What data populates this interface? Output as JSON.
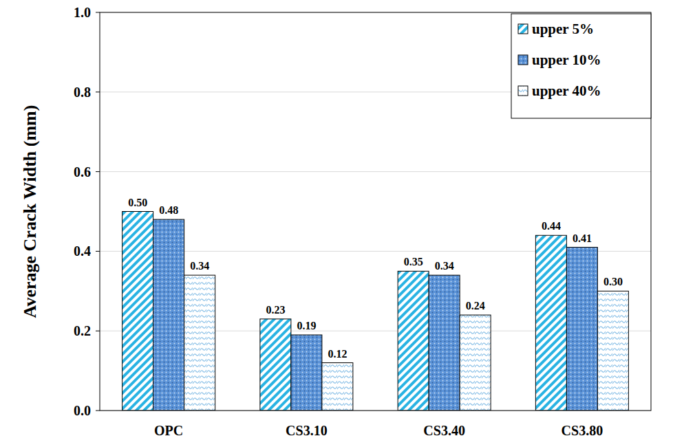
{
  "chart_data": {
    "type": "bar",
    "y_label": "Average Crack Width (mm)",
    "categories": [
      "OPC",
      "CS3.10",
      "CS3.40",
      "CS3.80"
    ],
    "series": [
      {
        "name": "upper 5%",
        "color": "#29b3e3",
        "values": [
          0.5,
          0.23,
          0.35,
          0.44
        ],
        "value_labels": [
          "0.50",
          "0.23",
          "0.35",
          "0.44"
        ]
      },
      {
        "name": "upper 10%",
        "color": "#5b93d8",
        "values": [
          0.48,
          0.19,
          0.34,
          0.41
        ],
        "value_labels": [
          "0.48",
          "0.19",
          "0.34",
          "0.41"
        ]
      },
      {
        "name": "upper 40%",
        "color": "#8fc3e8",
        "values": [
          0.34,
          0.12,
          0.24,
          0.3
        ],
        "value_labels": [
          "0.34",
          "0.12",
          "0.24",
          "0.30"
        ]
      }
    ],
    "ylim": [
      0,
      1
    ],
    "yticks": [
      {
        "value": 0,
        "label": "0.0"
      },
      0.2,
      0.4,
      0.6,
      0.8,
      {
        "value": 1,
        "label": "1.0"
      }
    ],
    "grid": true,
    "legend": "top-right",
    "data_labels": true
  }
}
